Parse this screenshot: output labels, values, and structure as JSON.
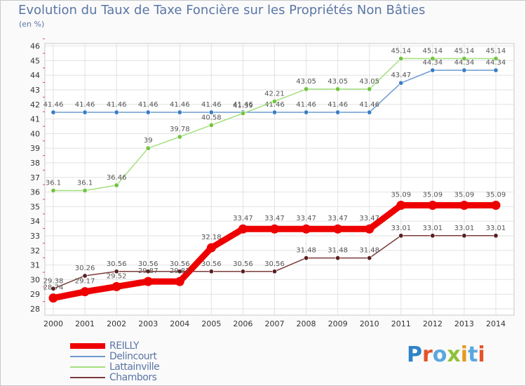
{
  "title": "Evolution du Taux de Taxe Foncière sur les Propriétés Non Bâties",
  "units": "(en %)",
  "logo": {
    "text": "Proxiti",
    "colors": [
      "#2f82c8",
      "#e3542b",
      "#5aa8df",
      "#8fc13a",
      "#e49b20",
      "#5aa8df",
      "#e3542b"
    ]
  },
  "chart_data": {
    "type": "line",
    "title": "Evolution du Taux de Taxe Foncière sur les Propriétés Non Bâties",
    "ylabel": "(en %)",
    "xlabel": "",
    "ylim": [
      28,
      46
    ],
    "yticks": [
      "28",
      "29",
      "30",
      "31",
      "32",
      "33",
      "34",
      "35",
      "36",
      "37",
      "38",
      "39",
      "40",
      "41",
      "42",
      "43",
      "44",
      "45",
      "46"
    ],
    "categories": [
      "2000",
      "2001",
      "2002",
      "2003",
      "2004",
      "2005",
      "2006",
      "2007",
      "2008",
      "2009",
      "2010",
      "2011",
      "2012",
      "2013",
      "2014"
    ],
    "grid": true,
    "series": [
      {
        "name": "REILLY",
        "color": "#ee0000",
        "pointColor": "#ee0000",
        "emphasis": true,
        "values": [
          28.74,
          29.17,
          29.52,
          29.87,
          29.87,
          32.18,
          33.47,
          33.47,
          33.47,
          33.47,
          33.47,
          35.09,
          35.09,
          35.09,
          35.09
        ],
        "labels": [
          "28.74",
          "29.17",
          "29.52",
          "29.87",
          "29.87",
          "32.18",
          "33.47",
          "33.47",
          "33.47",
          "33.47",
          "33.47",
          "35.09",
          "35.09",
          "35.09",
          "35.09"
        ]
      },
      {
        "name": "Delincourt",
        "color": "#6e9bd0",
        "pointColor": "#3b7dc4",
        "values": [
          41.46,
          41.46,
          41.46,
          41.46,
          41.46,
          41.46,
          41.46,
          41.46,
          41.46,
          41.46,
          41.46,
          43.47,
          44.34,
          44.34,
          44.34
        ],
        "labels": [
          "41.46",
          "41.46",
          "41.46",
          "41.46",
          "41.46",
          "41.46",
          "41.46",
          "41.46",
          "41.46",
          "41.46",
          "41.46",
          "43.47",
          "44.34",
          "44.34",
          "44.34"
        ]
      },
      {
        "name": "Lattainville",
        "color": "#a3df7c",
        "pointColor": "#72c43f",
        "values": [
          36.1,
          36.1,
          36.46,
          39,
          39.78,
          40.58,
          41.39,
          42.21,
          43.05,
          43.05,
          43.05,
          45.14,
          45.14,
          45.14,
          45.14
        ],
        "labels": [
          "36.1",
          "36.1",
          "36.46",
          "39",
          "39.78",
          "40.58",
          "41.39",
          "42.21",
          "43.05",
          "43.05",
          "43.05",
          "45.14",
          "45.14",
          "45.14",
          "45.14"
        ]
      },
      {
        "name": "Chambors",
        "color": "#7b3b3b",
        "pointColor": "#5a1f1f",
        "values": [
          29.38,
          30.26,
          30.56,
          30.56,
          30.56,
          30.56,
          30.56,
          30.56,
          31.48,
          31.48,
          31.48,
          33.01,
          33.01,
          33.01,
          33.01
        ],
        "labels": [
          "29.38",
          "30.26",
          "30.56",
          "30.56",
          "30.56",
          "30.56",
          "30.56",
          "30.56",
          "31.48",
          "31.48",
          "31.48",
          "33.01",
          "33.01",
          "33.01",
          "33.01"
        ]
      }
    ],
    "legend_position": "bottom-left"
  }
}
